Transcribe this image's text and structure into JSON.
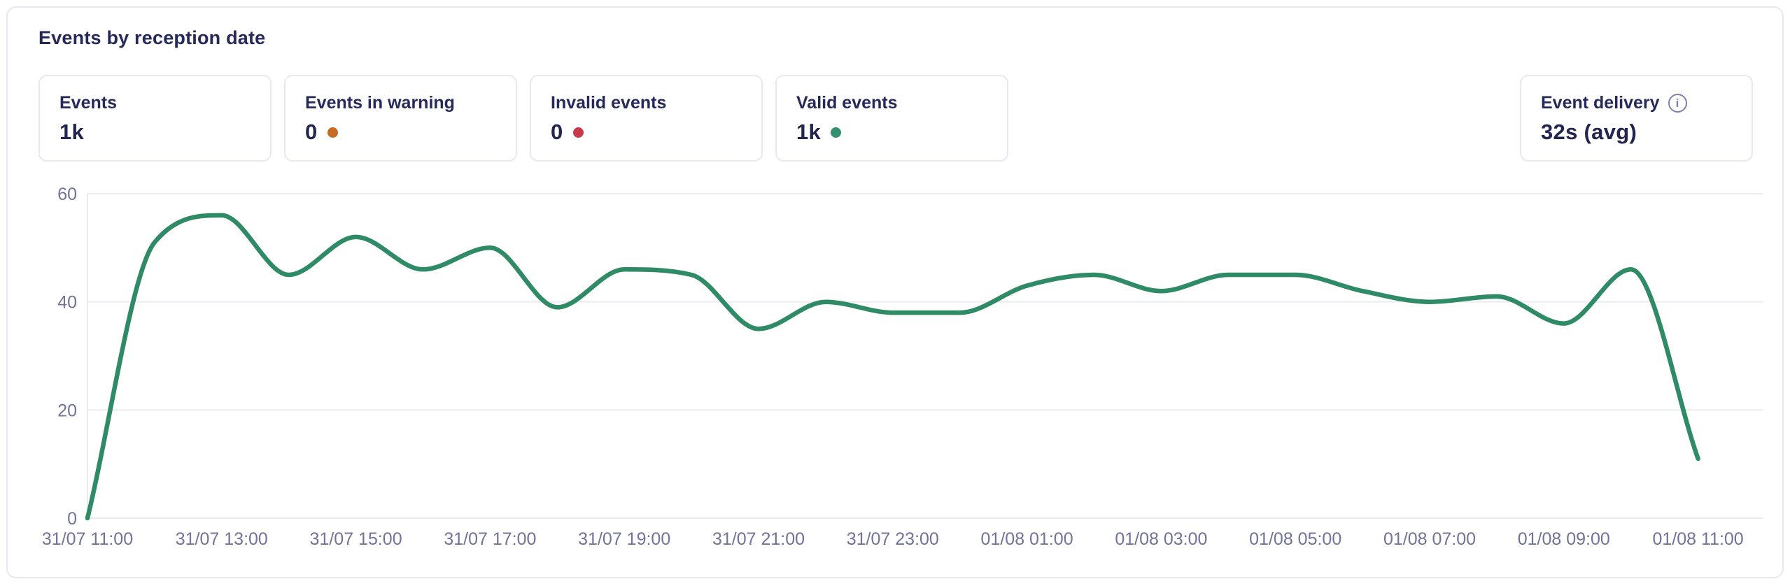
{
  "panel": {
    "title": "Events by reception date"
  },
  "colors": {
    "line_green": "#2f8a66",
    "warning_orange": "#c86b22",
    "invalid_red": "#c9394a",
    "valid_green": "#359070",
    "navy_text": "#262a5b",
    "axis_label": "#70749b",
    "gridline": "#e9ebf3"
  },
  "cards": [
    {
      "label": "Events",
      "value": "1k"
    },
    {
      "label": "Events in warning",
      "value": "0",
      "dot_color": "#c86b22"
    },
    {
      "label": "Invalid events",
      "value": "0",
      "dot_color": "#c9394a"
    },
    {
      "label": "Valid events",
      "value": "1k",
      "dot_color": "#359070"
    },
    {
      "label": "Event delivery",
      "value": "32s (avg)",
      "icon": "info-icon",
      "icon_glyph": "i"
    }
  ],
  "chart_data": {
    "type": "line",
    "title": "Events by reception date",
    "xlabel": "",
    "ylabel": "",
    "ylim": [
      0,
      60
    ],
    "y_ticks": [
      0,
      20,
      40,
      60
    ],
    "grid": true,
    "legend": "none",
    "line_color": "#2f8a66",
    "x": [
      "31/07 11:00",
      "31/07 12:00",
      "31/07 13:00",
      "31/07 14:00",
      "31/07 15:00",
      "31/07 16:00",
      "31/07 17:00",
      "31/07 18:00",
      "31/07 19:00",
      "31/07 20:00",
      "31/07 21:00",
      "31/07 22:00",
      "31/07 23:00",
      "01/08 00:00",
      "01/08 01:00",
      "01/08 02:00",
      "01/08 03:00",
      "01/08 04:00",
      "01/08 05:00",
      "01/08 06:00",
      "01/08 07:00",
      "01/08 08:00",
      "01/08 09:00",
      "01/08 10:00",
      "01/08 11:00"
    ],
    "values": [
      0,
      51,
      56,
      45,
      52,
      46,
      50,
      39,
      46,
      45,
      35,
      40,
      38,
      38,
      43,
      45,
      42,
      45,
      45,
      42,
      40,
      41,
      36,
      46,
      11
    ],
    "x_tick_labels": [
      "31/07 11:00",
      "31/07 13:00",
      "31/07 15:00",
      "31/07 17:00",
      "31/07 19:00",
      "31/07 21:00",
      "31/07 23:00",
      "01/08 01:00",
      "01/08 03:00",
      "01/08 05:00",
      "01/08 07:00",
      "01/08 09:00",
      "01/08 11:00"
    ]
  }
}
